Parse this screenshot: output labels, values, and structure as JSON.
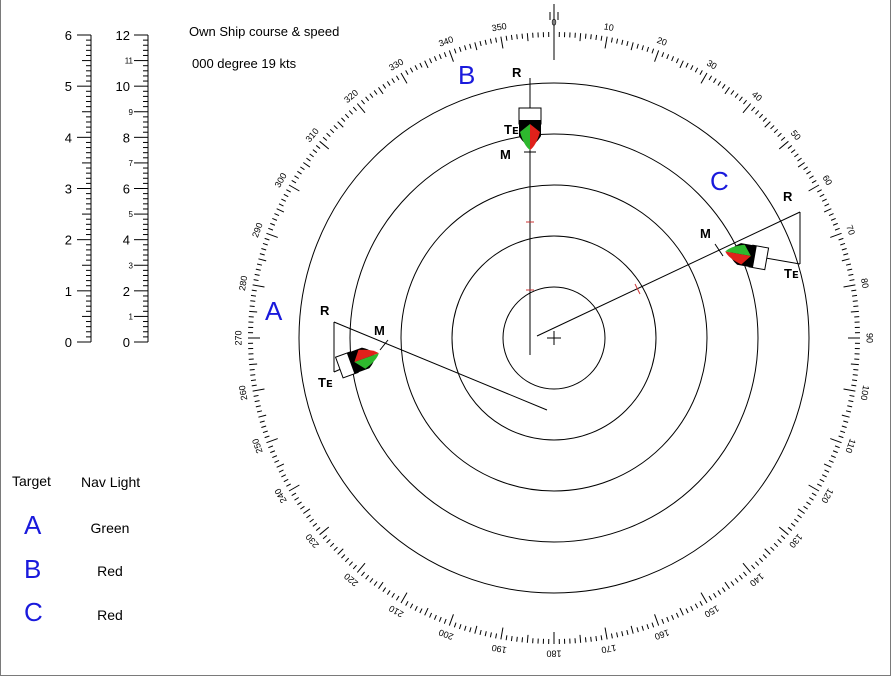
{
  "own_ship": {
    "title": "Own Ship course & speed",
    "value": "000 degree  19 kts"
  },
  "scales": {
    "outer_labels": [
      "0",
      "1",
      "2",
      "3",
      "4",
      "5",
      "6"
    ],
    "inner_labels": [
      "0",
      "2",
      "4",
      "6",
      "8",
      "10",
      "12"
    ],
    "inner_minor_labels": [
      "1",
      "3",
      "5",
      "7",
      "9",
      "11"
    ]
  },
  "compass": {
    "bearing_labels": [
      "0",
      "10",
      "20",
      "30",
      "40",
      "50",
      "60",
      "70",
      "80",
      "90",
      "100",
      "110",
      "120",
      "130",
      "140",
      "150",
      "160",
      "170",
      "180",
      "190",
      "200",
      "210",
      "220",
      "230",
      "240",
      "250",
      "260",
      "270",
      "280",
      "290",
      "300",
      "310",
      "320",
      "330",
      "340",
      "350"
    ],
    "range_rings": 5
  },
  "targets_on_plot": [
    {
      "letter": "A",
      "r_label": "R",
      "m_label": "M",
      "te_label": "Tᴇ"
    },
    {
      "letter": "B",
      "r_label": "R",
      "m_label": "M",
      "te_label": "Tᴇ"
    },
    {
      "letter": "C",
      "r_label": "R",
      "m_label": "M",
      "te_label": "Tᴇ"
    }
  ],
  "table": {
    "col_target": "Target",
    "col_light": "Nav Light",
    "rows": [
      {
        "target": "A",
        "light": "Green"
      },
      {
        "target": "B",
        "light": "Red"
      },
      {
        "target": "C",
        "light": "Red"
      }
    ]
  },
  "colors": {
    "target_letter": "#1a1adc",
    "port_light": "#e0211b",
    "starboard_light": "#2eb82e",
    "hull": "#000000"
  }
}
